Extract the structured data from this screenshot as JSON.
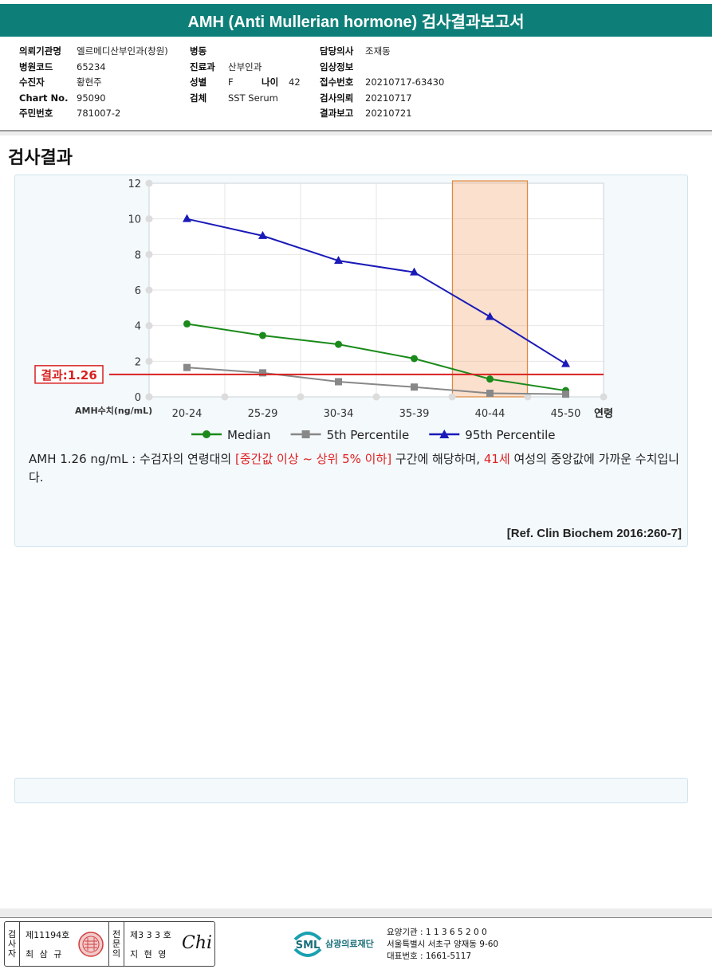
{
  "header": {
    "title": "AMH (Anti Mullerian hormone) 검사결과보고서"
  },
  "info": {
    "col1": [
      {
        "label": "의뢰기관명",
        "value": "엘르메디산부인과(창원)"
      },
      {
        "label": "병원코드",
        "value": "65234"
      },
      {
        "label": "수진자",
        "value": "황현주"
      },
      {
        "label": "Chart No.",
        "value": "95090"
      },
      {
        "label": "주민번호",
        "value": "781007-2"
      }
    ],
    "col2": [
      {
        "label": "병동",
        "value": ""
      },
      {
        "label": "진료과",
        "value": "산부인과"
      },
      {
        "label": "성별",
        "value": "F"
      },
      {
        "label": "검체",
        "value": "SST Serum"
      }
    ],
    "age": {
      "label": "나이",
      "value": "42"
    },
    "col3": [
      {
        "label": "담당의사",
        "value": "조재동"
      },
      {
        "label": "임상정보",
        "value": ""
      },
      {
        "label": "접수번호",
        "value": "20210717-63430"
      },
      {
        "label": "검사의뢰",
        "value": "20210717"
      },
      {
        "label": "결과보고",
        "value": "20210721"
      }
    ]
  },
  "section_title": "검사결과",
  "chart_data": {
    "type": "line",
    "categories": [
      "20-24",
      "25-29",
      "30-34",
      "35-39",
      "40-44",
      "45-50"
    ],
    "xlabel": "연령",
    "ylabel": "AMH수치(ng/mL)",
    "ylim": [
      0,
      12
    ],
    "yticks": [
      0,
      2,
      4,
      6,
      8,
      10,
      12
    ],
    "grid": true,
    "legend_position": "bottom",
    "series": [
      {
        "name": "Median",
        "values": [
          4.1,
          3.45,
          2.95,
          2.15,
          1.0,
          0.35
        ],
        "color": "#1a8a1a",
        "marker": "circle"
      },
      {
        "name": "5th Percentile",
        "values": [
          1.65,
          1.35,
          0.85,
          0.55,
          0.2,
          0.15
        ],
        "color": "#888888",
        "marker": "square"
      },
      {
        "name": "95th Percentile",
        "values": [
          10.0,
          9.05,
          7.65,
          7.0,
          4.5,
          1.85
        ],
        "color": "#1a1ab8",
        "marker": "triangle"
      }
    ],
    "result_line": {
      "label": "결과:1.26",
      "value": 1.26,
      "color": "#d92020"
    },
    "highlight_category": "40-44",
    "highlight_color": "#f4b183"
  },
  "result_text": {
    "part1": "AMH  1.26 ng/mL : 수검자의 연령대의 ",
    "range": "[중간값 이상 ~ 상위 5% 이하]",
    "part2": "  구간에 해당하며, ",
    "age": "41세",
    "part3": " 여성의 중앙값에 가까운 수치입니다."
  },
  "reference": "[Ref. Clin Biochem 2016:260-7]",
  "footer": {
    "sig_col1_label": "검사자",
    "sig_col1_no": "제11194호",
    "sig_col1_name": "최 삼 규",
    "sig_col2_label": "전문의",
    "sig_col2_no": "제3 3 3 호",
    "sig_col2_name": "지 현 영",
    "signature_text": "Chi",
    "logo_text": "SML",
    "org_name": "삼광의료재단",
    "org_lines": [
      "요양기관 : 1 1 3 6 5 2 0 0",
      "서울특별시 서초구 양재동 9-60",
      "대표번호 : 1661-5117"
    ]
  }
}
